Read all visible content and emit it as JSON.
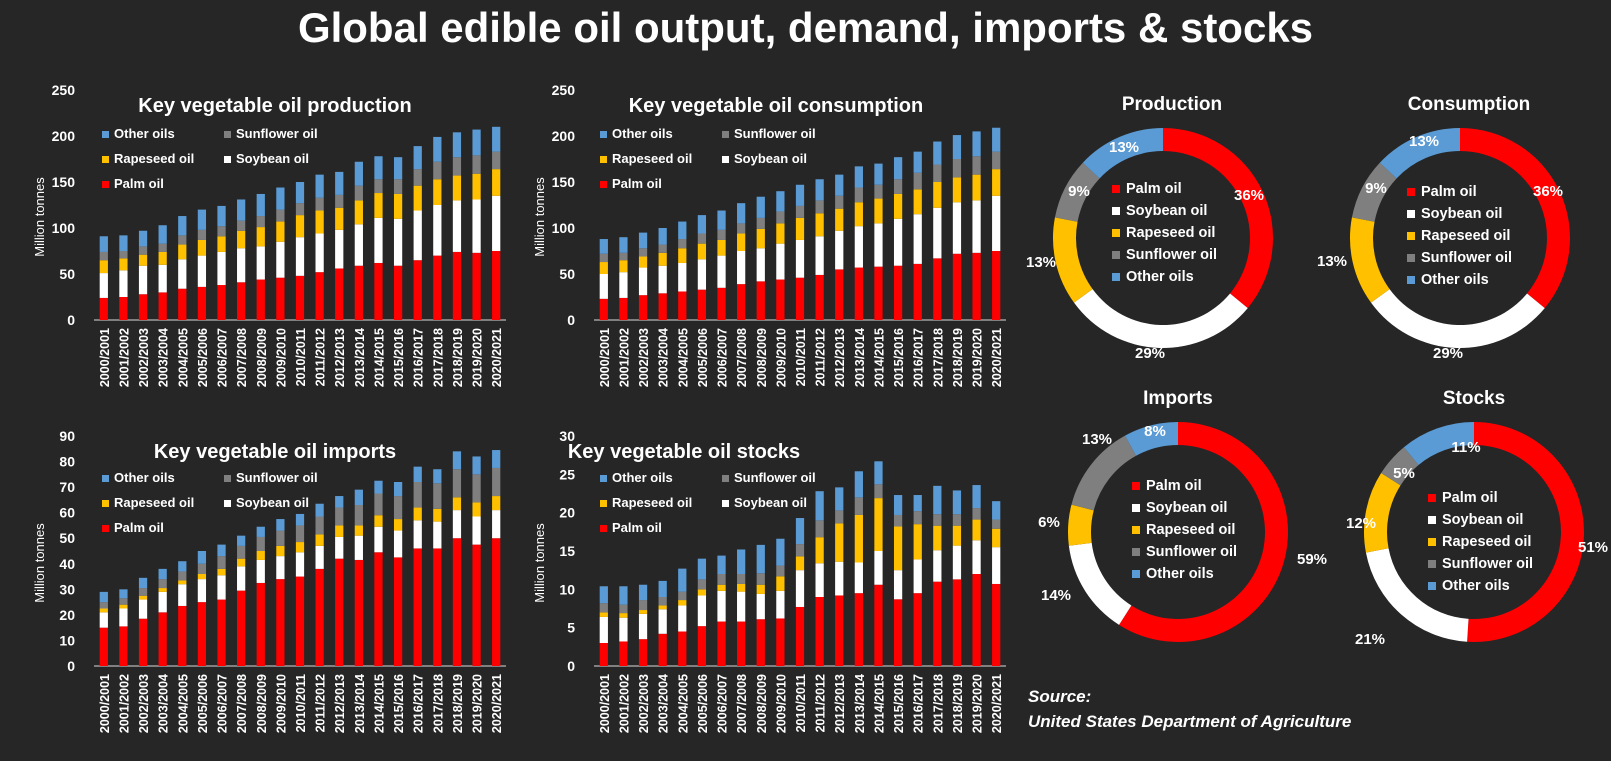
{
  "title": "Global edible oil output, demand, imports & stocks",
  "source": {
    "label": "Source:",
    "text": "United States Department of Agriculture"
  },
  "colors": {
    "palm": "#ff0000",
    "soybean": "#ffffff",
    "rapeseed": "#ffc000",
    "sunflower": "#7f7f7f",
    "other": "#5b9bd5"
  },
  "chart_data": [
    {
      "type": "bar",
      "stacked": true,
      "title": "Key vegetable oil production",
      "ylabel": "Million tonnes",
      "ylim": [
        0,
        250
      ],
      "yticks": [
        0,
        50,
        100,
        150,
        200,
        250
      ],
      "categories": [
        "2000/2001",
        "2001/2002",
        "2002/2003",
        "2003/2004",
        "2004/2005",
        "2005/2006",
        "2006/2007",
        "2007/2008",
        "2008/2009",
        "2009/2010",
        "2010/2011",
        "2011/2012",
        "2012/2013",
        "2013/2014",
        "2014/2015",
        "2015/2016",
        "2016/2017",
        "2017/2018",
        "2018/2019",
        "2019/2020",
        "2020/2021"
      ],
      "legend": [
        "Other oils",
        "Sunflower oil",
        "Rapeseed oil",
        "Soybean oil",
        "Palm oil"
      ],
      "series": [
        {
          "name": "Palm oil",
          "values": [
            24,
            25,
            28,
            30,
            34,
            36,
            38,
            41,
            44,
            46,
            48,
            52,
            56,
            59,
            62,
            59,
            65,
            70,
            74,
            73,
            75
          ]
        },
        {
          "name": "Soybean oil",
          "values": [
            27,
            29,
            31,
            30,
            32,
            34,
            36,
            37,
            36,
            39,
            42,
            42,
            42,
            45,
            49,
            51,
            54,
            55,
            56,
            58,
            60
          ]
        },
        {
          "name": "Rapeseed oil",
          "values": [
            14,
            13,
            12,
            14,
            16,
            17,
            17,
            19,
            21,
            22,
            24,
            25,
            24,
            26,
            27,
            27,
            27,
            28,
            27,
            28,
            29
          ]
        },
        {
          "name": "Sunflower oil",
          "values": [
            9,
            8,
            9,
            9,
            10,
            11,
            11,
            11,
            12,
            13,
            13,
            14,
            14,
            16,
            15,
            16,
            18,
            19,
            20,
            20,
            19
          ]
        },
        {
          "name": "Other oils",
          "values": [
            17,
            17,
            17,
            20,
            21,
            22,
            22,
            23,
            24,
            24,
            23,
            25,
            25,
            26,
            25,
            24,
            25,
            27,
            27,
            28,
            27
          ]
        }
      ]
    },
    {
      "type": "bar",
      "stacked": true,
      "title": "Key vegetable oil consumption",
      "ylabel": "Million tonnes",
      "ylim": [
        0,
        250
      ],
      "yticks": [
        0,
        50,
        100,
        150,
        200,
        250
      ],
      "categories": [
        "2000/2001",
        "2001/2002",
        "2002/2003",
        "2003/2004",
        "2004/2005",
        "2005/2006",
        "2006/2007",
        "2007/2008",
        "2008/2009",
        "2009/2010",
        "2010/2011",
        "2011/2012",
        "2012/2013",
        "2013/2014",
        "2014/2015",
        "2015/2016",
        "2016/2017",
        "2017/2018",
        "2018/2019",
        "2019/2020",
        "2020/2021"
      ],
      "legend": [
        "Other oils",
        "Sunflower oil",
        "Rapeseed oil",
        "Soybean oil",
        "Palm oil"
      ],
      "series": [
        {
          "name": "Palm oil",
          "values": [
            23,
            24,
            27,
            29,
            31,
            33,
            35,
            39,
            42,
            44,
            46,
            49,
            55,
            57,
            58,
            59,
            61,
            67,
            72,
            73,
            75
          ]
        },
        {
          "name": "Soybean oil",
          "values": [
            27,
            28,
            30,
            30,
            31,
            33,
            35,
            36,
            36,
            39,
            41,
            42,
            42,
            45,
            47,
            51,
            54,
            55,
            56,
            57,
            60
          ]
        },
        {
          "name": "Rapeseed oil",
          "values": [
            13,
            13,
            12,
            14,
            16,
            17,
            17,
            19,
            21,
            22,
            24,
            25,
            24,
            26,
            27,
            27,
            27,
            28,
            27,
            28,
            29
          ]
        },
        {
          "name": "Sunflower oil",
          "values": [
            9,
            8,
            9,
            9,
            10,
            11,
            11,
            11,
            12,
            13,
            13,
            14,
            14,
            16,
            15,
            16,
            18,
            19,
            20,
            20,
            19
          ]
        },
        {
          "name": "Other oils",
          "values": [
            16,
            17,
            17,
            18,
            19,
            20,
            21,
            22,
            23,
            22,
            23,
            23,
            23,
            23,
            23,
            24,
            23,
            25,
            26,
            27,
            26
          ]
        }
      ]
    },
    {
      "type": "bar",
      "stacked": true,
      "title": "Key vegetable oil imports",
      "ylabel": "Million tonnes",
      "ylim": [
        0,
        90
      ],
      "yticks": [
        0,
        10,
        20,
        30,
        40,
        50,
        60,
        70,
        80,
        90
      ],
      "categories": [
        "2000/2001",
        "2001/2002",
        "2002/2003",
        "2003/2004",
        "2004/2005",
        "2005/2006",
        "2006/2007",
        "2007/2008",
        "2008/2009",
        "2009/2010",
        "2010/2011",
        "2011/2012",
        "2012/2013",
        "2013/2014",
        "2014/2015",
        "2015/2016",
        "2016/2017",
        "2017/2018",
        "2018/2019",
        "2019/2020",
        "2020/2021"
      ],
      "legend": [
        "Other oils",
        "Sunflower oil",
        "Rapeseed oil",
        "Soybean oil",
        "Palm oil"
      ],
      "series": [
        {
          "name": "Palm oil",
          "values": [
            15,
            15.5,
            18.5,
            21,
            23.5,
            25,
            26,
            29.5,
            32.5,
            34,
            35,
            38,
            42,
            41.5,
            44.5,
            42.5,
            46,
            46,
            50,
            47.5,
            50
          ]
        },
        {
          "name": "Soybean oil",
          "values": [
            6,
            7,
            7.5,
            8,
            8.5,
            9,
            9.5,
            9.5,
            9,
            9,
            9.5,
            9,
            8.5,
            9.5,
            10,
            10.5,
            11,
            10.5,
            11,
            11,
            11
          ]
        },
        {
          "name": "Rapeseed oil",
          "values": [
            1.5,
            1.5,
            1.5,
            1.5,
            1.5,
            2,
            2.5,
            3,
            3.5,
            4,
            4,
            4.5,
            4.5,
            4,
            4.5,
            4.5,
            5,
            5,
            5,
            5.5,
            5.5
          ]
        },
        {
          "name": "Sunflower oil",
          "values": [
            2.5,
            2.5,
            3,
            3.5,
            3.5,
            4,
            5,
            5,
            5.5,
            6,
            6.5,
            7,
            7,
            8,
            8.5,
            9,
            10,
            10,
            11,
            11,
            11
          ]
        },
        {
          "name": "Other oils",
          "values": [
            4,
            3.5,
            4,
            4,
            4,
            5,
            4.5,
            4,
            4,
            4.5,
            4.5,
            5,
            4.5,
            6,
            5,
            5.5,
            6,
            5.5,
            7,
            7,
            7
          ]
        }
      ]
    },
    {
      "type": "bar",
      "stacked": true,
      "title": "Key vegetable oil stocks",
      "ylabel": "Million tonnes",
      "ylim": [
        0,
        30
      ],
      "yticks": [
        0,
        5,
        10,
        15,
        20,
        25,
        30
      ],
      "categories": [
        "2000/2001",
        "2001/2002",
        "2002/2003",
        "2003/2004",
        "2004/2005",
        "2005/2006",
        "2006/2007",
        "2007/2008",
        "2008/2009",
        "2009/2010",
        "2010/2011",
        "2011/2012",
        "2012/2013",
        "2013/2014",
        "2014/2015",
        "2015/2016",
        "2016/2017",
        "2017/2018",
        "2018/2019",
        "2019/2020",
        "2020/2021"
      ],
      "legend": [
        "Other oils",
        "Sunflower oil",
        "Rapeseed oil",
        "Soybean oil",
        "Palm oil"
      ],
      "series": [
        {
          "name": "Palm oil",
          "values": [
            3,
            3.2,
            3.5,
            4.2,
            4.5,
            5.2,
            5.8,
            5.8,
            6.1,
            6.2,
            7.7,
            9,
            9.2,
            9.5,
            10.6,
            8.7,
            9.5,
            11,
            11.3,
            12,
            10.7
          ]
        },
        {
          "name": "Soybean oil",
          "values": [
            3.4,
            3.1,
            3.3,
            3.2,
            3.4,
            4,
            4,
            3.9,
            3.3,
            3.6,
            4.8,
            4.4,
            4.4,
            4,
            4.4,
            3.8,
            4.4,
            4.1,
            4.4,
            4.4,
            4.8
          ]
        },
        {
          "name": "Rapeseed oil",
          "values": [
            0.6,
            0.6,
            0.5,
            0.5,
            0.7,
            0.8,
            0.8,
            1,
            1.2,
            1.9,
            1.8,
            3.4,
            5,
            6.2,
            6.9,
            5.7,
            4.6,
            3.2,
            2.6,
            2.7,
            2.4
          ]
        },
        {
          "name": "Sunflower oil",
          "values": [
            1.2,
            1.1,
            1.3,
            1.1,
            1.1,
            1.3,
            1.4,
            1.3,
            1.5,
            1.4,
            1.6,
            2.2,
            1.7,
            2.3,
            1.8,
            1.5,
            1.7,
            1.5,
            1.5,
            1.5,
            1.2
          ]
        },
        {
          "name": "Other oils",
          "values": [
            2.2,
            2.4,
            2,
            2.1,
            3,
            2.7,
            2.4,
            3.2,
            3.7,
            3.5,
            3.4,
            3.8,
            3,
            3.4,
            3,
            2.6,
            2.1,
            3.7,
            3.1,
            3,
            2.4
          ]
        }
      ]
    },
    {
      "type": "pie",
      "donut": true,
      "title": "Production",
      "labels": [
        "Palm oil",
        "Soybean oil",
        "Rapeseed oil",
        "Sunflower oil",
        "Other oils"
      ],
      "values": [
        36,
        29,
        13,
        9,
        13
      ],
      "value_labels": [
        "36%",
        "29%",
        "13%",
        "9%",
        "13%"
      ]
    },
    {
      "type": "pie",
      "donut": true,
      "title": "Consumption",
      "labels": [
        "Palm oil",
        "Soybean oil",
        "Rapeseed oil",
        "Sunflower oil",
        "Other oils"
      ],
      "values": [
        36,
        29,
        13,
        9,
        13
      ],
      "value_labels": [
        "36%",
        "29%",
        "13%",
        "9%",
        "13%"
      ]
    },
    {
      "type": "pie",
      "donut": true,
      "title": "Imports",
      "labels": [
        "Palm oil",
        "Soybean oil",
        "Rapeseed oil",
        "Sunflower oil",
        "Other oils"
      ],
      "values": [
        59,
        14,
        6,
        13,
        8
      ],
      "value_labels": [
        "59%",
        "14%",
        "6%",
        "13%",
        "8%"
      ]
    },
    {
      "type": "pie",
      "donut": true,
      "title": "Stocks",
      "labels": [
        "Palm oil",
        "Soybean oil",
        "Rapeseed oil",
        "Sunflower oil",
        "Other oils"
      ],
      "values": [
        51,
        21,
        12,
        5,
        11
      ],
      "value_labels": [
        "51%",
        "21%",
        "12%",
        "5%",
        "11%"
      ]
    }
  ]
}
